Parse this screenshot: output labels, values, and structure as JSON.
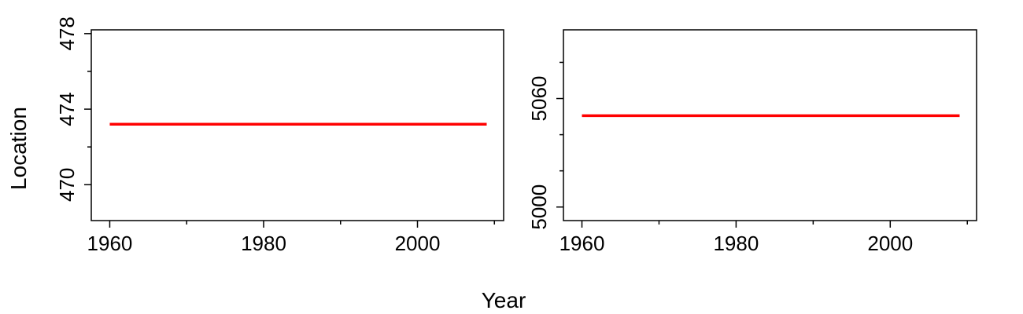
{
  "figure": {
    "xlabel": "Year",
    "ylabel": "Location"
  },
  "chart_data": [
    {
      "type": "line",
      "x_major_ticks": [
        1960,
        1980,
        2000
      ],
      "x_minor_ticks": [
        1970,
        1990,
        2010
      ],
      "xlim": [
        1957.6,
        2011.2
      ],
      "y_major_ticks": [
        470,
        474,
        478
      ],
      "y_minor_ticks": [
        472,
        476
      ],
      "ylim": [
        468.1,
        478.2
      ],
      "grid": false,
      "series": [
        {
          "color": "#ff0000",
          "x": [
            1960,
            2009
          ],
          "y": [
            473.2,
            473.2
          ]
        }
      ]
    },
    {
      "type": "line",
      "x_major_ticks": [
        1960,
        1980,
        2000
      ],
      "x_minor_ticks": [
        1970,
        1990,
        2010
      ],
      "xlim": [
        1957.6,
        2011.2
      ],
      "y_major_ticks": [
        5000,
        5060
      ],
      "y_minor_ticks": [
        5020,
        5040,
        5080
      ],
      "ylim": [
        4992.5,
        5098
      ],
      "grid": false,
      "series": [
        {
          "color": "#ff0000",
          "x": [
            1960,
            2009
          ],
          "y": [
            5050.5,
            5050.5
          ]
        }
      ]
    }
  ]
}
